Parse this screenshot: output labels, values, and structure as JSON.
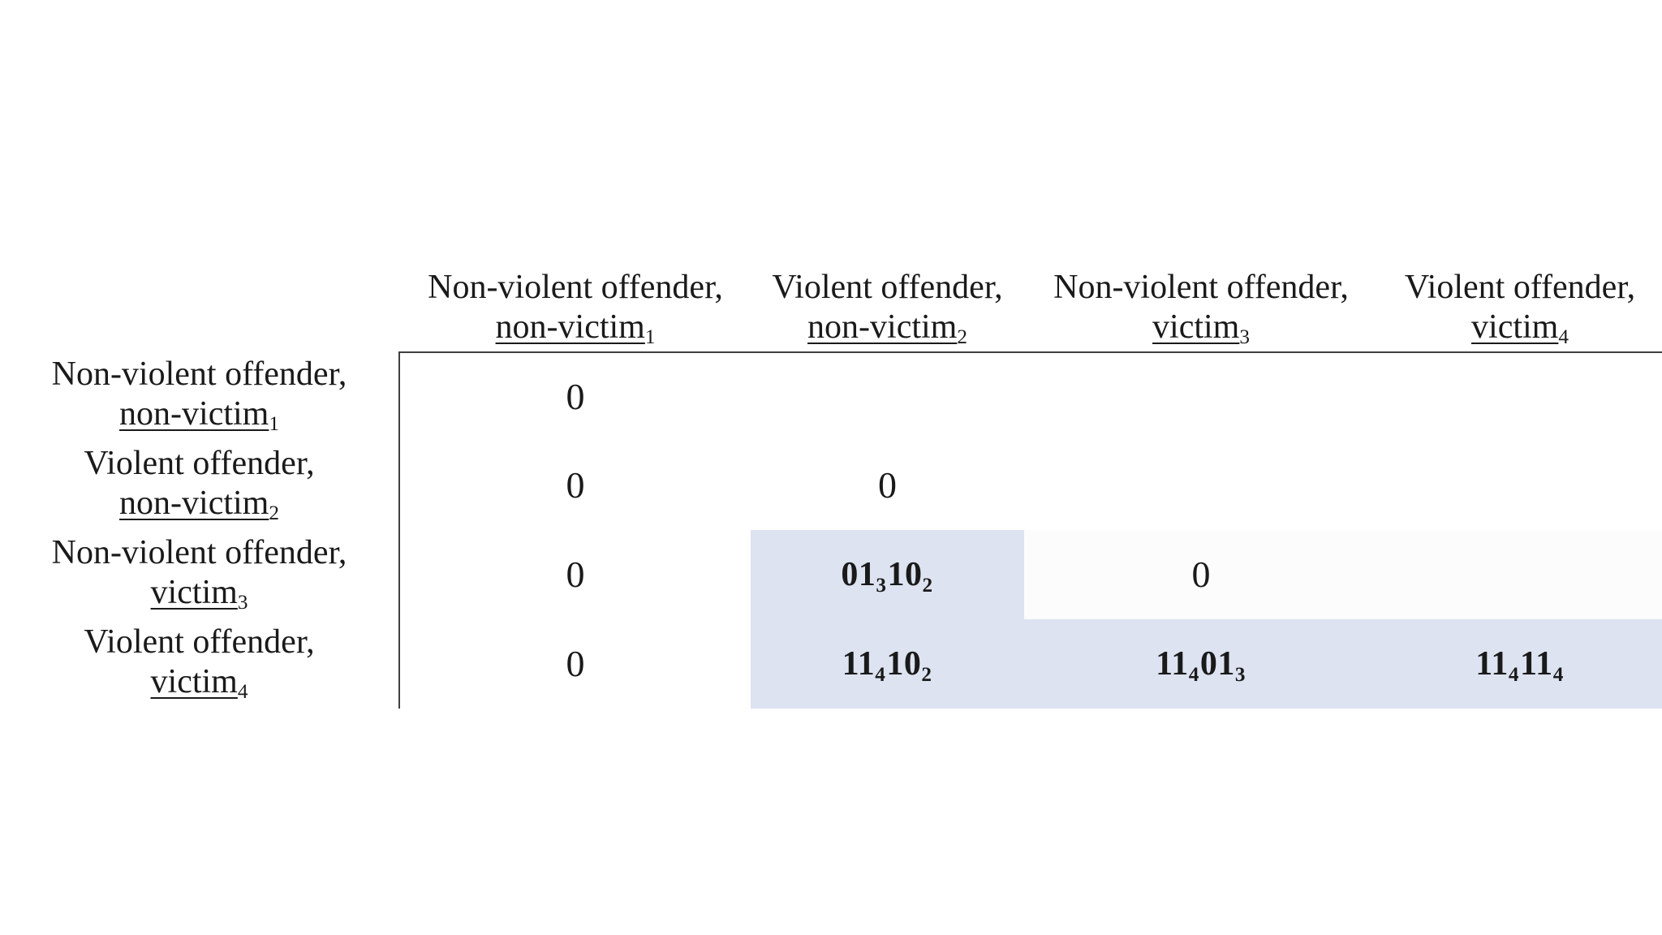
{
  "figure": {
    "description": "Offender-victim classification matrix (lower-triangular payoff table)"
  },
  "colors": {
    "background": "#ffffff",
    "text": "#1a1a1a",
    "border": "#3f3f3f",
    "highlight": "#dde3f1",
    "faint": "#fcfcfd"
  },
  "table": {
    "col_headers": [
      {
        "category": "Non-violent offender,",
        "group": "non-victim",
        "subscript": "1"
      },
      {
        "category": "Violent offender,",
        "group": "non-victim",
        "subscript": "2"
      },
      {
        "category": "Non-violent offender,",
        "group": "victim",
        "subscript": "3"
      },
      {
        "category": "Violent offender,",
        "group": "victim",
        "subscript": "4"
      }
    ],
    "row_headers": [
      {
        "category": "Non-violent offender,",
        "group": "non-victim",
        "subscript": "1"
      },
      {
        "category": "Violent offender,",
        "group": "non-victim",
        "subscript": "2"
      },
      {
        "category": "Non-violent offender,",
        "group": "victim",
        "subscript": "3"
      },
      {
        "category": "Violent offender,",
        "group": "victim",
        "subscript": "4"
      }
    ],
    "rows": [
      {
        "cells": [
          {
            "text": "0"
          },
          null,
          null,
          null
        ]
      },
      {
        "cells": [
          {
            "text": "0"
          },
          {
            "text": "0"
          },
          null,
          null
        ]
      },
      {
        "cells": [
          {
            "text": "0"
          },
          {
            "parts": [
              [
                "01",
                "3"
              ],
              [
                "10",
                "2"
              ]
            ],
            "bg": "highlight"
          },
          {
            "text": "0",
            "bg": "faint"
          },
          {
            "bg": "faint"
          }
        ]
      },
      {
        "cells": [
          {
            "text": "0"
          },
          {
            "parts": [
              [
                "11",
                "4"
              ],
              [
                "10",
                "2"
              ]
            ],
            "bg": "highlight"
          },
          {
            "parts": [
              [
                "11",
                "4"
              ],
              [
                "01",
                "3"
              ]
            ],
            "bg": "highlight"
          },
          {
            "parts": [
              [
                "11",
                "4"
              ],
              [
                "11",
                "4"
              ]
            ],
            "bg": "highlight"
          }
        ]
      }
    ]
  }
}
